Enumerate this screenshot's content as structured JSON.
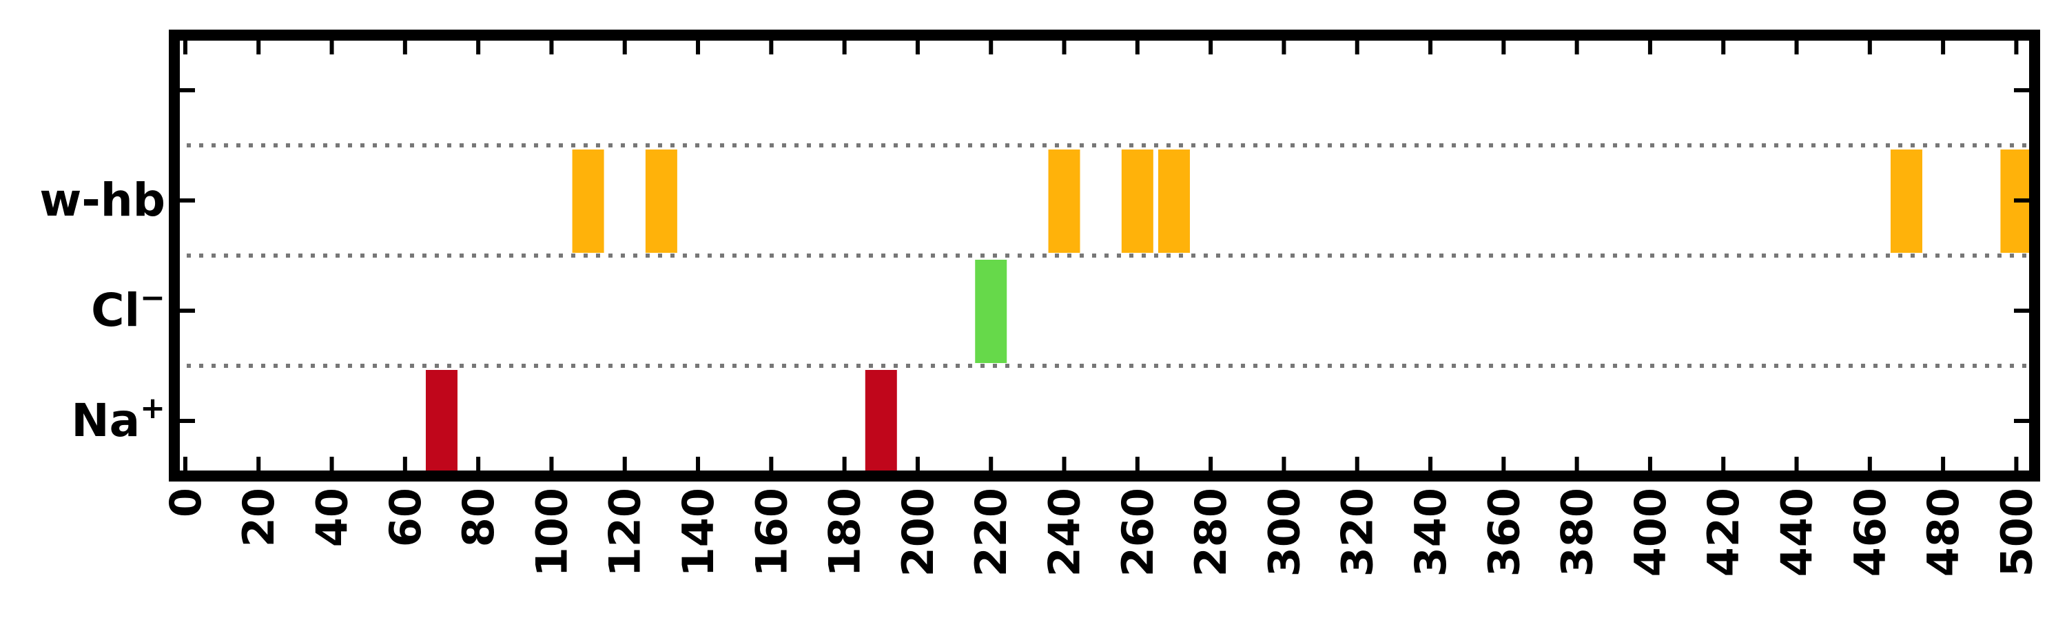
{
  "chart_data": {
    "type": "bar",
    "orientation": "horizontal-timeline",
    "title": "",
    "xlabel": "",
    "ylabel": "",
    "xlim": [
      -3,
      505
    ],
    "x_ticks": [
      0,
      20,
      40,
      60,
      80,
      100,
      120,
      140,
      160,
      180,
      200,
      220,
      240,
      260,
      280,
      300,
      320,
      340,
      360,
      380,
      400,
      420,
      440,
      460,
      480,
      500
    ],
    "categories": [
      {
        "label": "Na",
        "sup": "+"
      },
      {
        "label": "Cl",
        "sup": "−"
      },
      {
        "label": "w-hb",
        "sup": ""
      }
    ],
    "grid": "dotted horizontal separators between rows",
    "series": [
      {
        "row": 0,
        "color": "#c0061b",
        "x": [
          70,
          190
        ]
      },
      {
        "row": 1,
        "color": "#66d94a",
        "x": [
          220
        ]
      },
      {
        "row": 2,
        "color": "#ffb20a",
        "x": [
          110,
          130,
          240,
          260,
          270,
          470,
          500
        ]
      }
    ]
  }
}
